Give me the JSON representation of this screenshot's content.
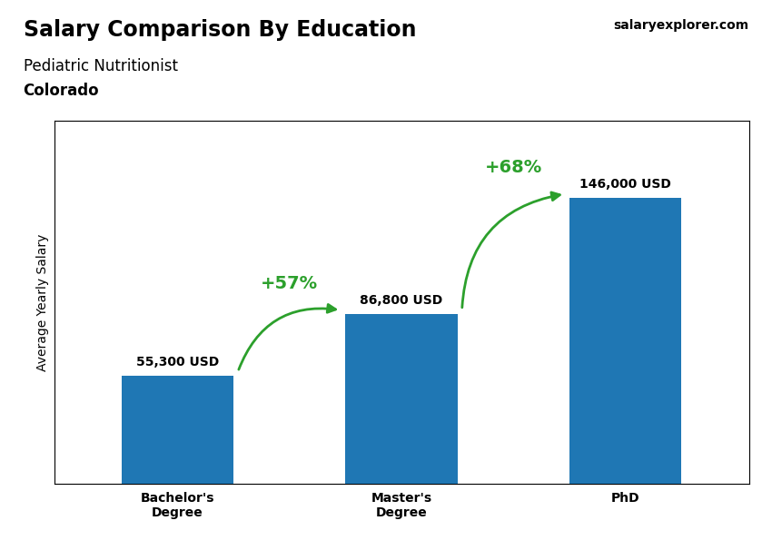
{
  "chart_data": {
    "type": "bar",
    "title": "Salary Comparison By Education",
    "subtitle": "Pediatric Nutritionist",
    "location": "Colorado",
    "website": "salaryexplorer.com",
    "ylabel": "Average Yearly Salary",
    "categories": [
      "Bachelor's\nDegree",
      "Master's\nDegree",
      "PhD"
    ],
    "values": [
      55300,
      86800,
      146000
    ],
    "value_labels": [
      "55,300 USD",
      "86,800 USD",
      "146,000 USD"
    ],
    "data_labels": true,
    "ylim": [
      0,
      185000
    ],
    "yticks": [],
    "tick_labels": "x",
    "annotations": [
      {
        "from": "Bachelor's\nDegree",
        "to": "Master's\nDegree",
        "text": "+57%"
      },
      {
        "from": "Master's\nDegree",
        "to": "PhD",
        "text": "+68%"
      }
    ]
  }
}
